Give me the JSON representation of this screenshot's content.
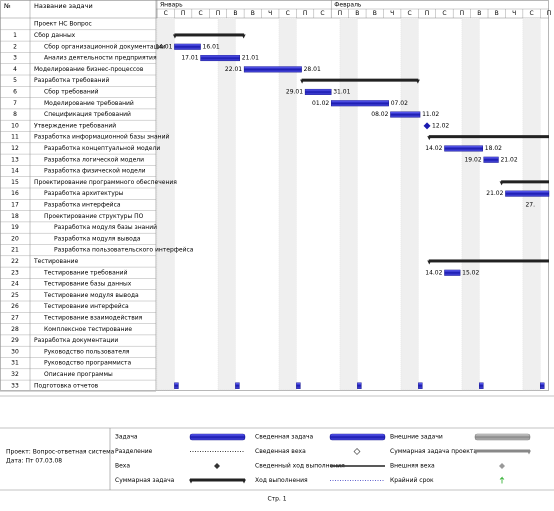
{
  "header": {
    "id_col": "№",
    "name_col": "Название задачи"
  },
  "timescale": {
    "xlim": [
      12,
      57
    ],
    "months": [
      {
        "value": 12,
        "label": "Январь"
      },
      {
        "value": 32,
        "label": "Февраль"
      }
    ],
    "ticks": [
      {
        "value": 12,
        "label": "С"
      },
      {
        "value": 14,
        "label": "П"
      },
      {
        "value": 16,
        "label": "С"
      },
      {
        "value": 18,
        "label": "П"
      },
      {
        "value": 20,
        "label": "В"
      },
      {
        "value": 22,
        "label": "В"
      },
      {
        "value": 24,
        "label": "Ч"
      },
      {
        "value": 26,
        "label": "С"
      },
      {
        "value": 28,
        "label": "П"
      },
      {
        "value": 30,
        "label": "С"
      },
      {
        "value": 32,
        "label": "П"
      },
      {
        "value": 34,
        "label": "В"
      },
      {
        "value": 36,
        "label": "В"
      },
      {
        "value": 38,
        "label": "Ч"
      },
      {
        "value": 40,
        "label": "С"
      },
      {
        "value": 42,
        "label": "П"
      },
      {
        "value": 44,
        "label": "С"
      },
      {
        "value": 46,
        "label": "П"
      },
      {
        "value": 48,
        "label": "В"
      },
      {
        "value": 50,
        "label": "В"
      },
      {
        "value": 52,
        "label": "Ч"
      },
      {
        "value": 54,
        "label": "С"
      },
      {
        "value": 56,
        "label": "П"
      }
    ],
    "weekends": [
      12,
      19,
      26,
      33,
      40,
      47,
      54
    ]
  },
  "tasks": [
    {
      "name": "Проект НС Вопрос",
      "level": 0
    },
    {
      "id": "1",
      "name": "Сбор данных",
      "level": 0,
      "kind": "summary",
      "start": 14,
      "end": 22
    },
    {
      "id": "2",
      "name": "Сбор организационной документации",
      "level": 1,
      "kind": "task",
      "start": 14,
      "end": 17,
      "start_label": "14.01",
      "end_label": "16.01"
    },
    {
      "id": "3",
      "name": "Анализ деятельности предприятия",
      "level": 1,
      "kind": "task",
      "start": 17,
      "end": 21.5,
      "start_label": "17.01",
      "end_label": "21.01"
    },
    {
      "id": "4",
      "name": "Моделирование бизнес-процессов",
      "level": 0,
      "kind": "task",
      "start": 22,
      "end": 28.6,
      "start_label": "22.01",
      "end_label": "28.01"
    },
    {
      "id": "5",
      "name": "Разработка требований",
      "level": 0,
      "kind": "summary",
      "start": 28.6,
      "end": 42
    },
    {
      "id": "6",
      "name": "Сбор требований",
      "level": 1,
      "kind": "task",
      "start": 29,
      "end": 32,
      "start_label": "29.01",
      "end_label": "31.01"
    },
    {
      "id": "7",
      "name": "Моделирование требований",
      "level": 1,
      "kind": "task",
      "start": 32,
      "end": 38.6,
      "start_label": "01.02",
      "end_label": "07.02"
    },
    {
      "id": "8",
      "name": "Спецификация требований",
      "level": 1,
      "kind": "task",
      "start": 38.8,
      "end": 42.2,
      "start_label": "08.02",
      "end_label": "11.02"
    },
    {
      "id": "10",
      "name": "Утверждение требований",
      "level": 0,
      "kind": "milestone",
      "start": 43,
      "end_label": "12.02"
    },
    {
      "id": "11",
      "name": "Разработка информационной базы знаний",
      "level": 0,
      "kind": "summary",
      "start": 43.2,
      "end": 57
    },
    {
      "id": "12",
      "name": "Разработка концептуальной модели",
      "level": 1,
      "kind": "task",
      "start": 45,
      "end": 49.4,
      "start_label": "14.02",
      "end_label": "18.02"
    },
    {
      "id": "13",
      "name": "Разработка логической модели",
      "level": 1,
      "kind": "task",
      "start": 49.5,
      "end": 51.2,
      "start_label": "19.02",
      "end_label": "21.02"
    },
    {
      "id": "14",
      "name": "Разработка физической модели",
      "level": 1
    },
    {
      "id": "15",
      "name": "Проектирование программного обеспечения",
      "level": 0,
      "kind": "summary",
      "start": 51.5,
      "end": 57
    },
    {
      "id": "16",
      "name": "Разработка архитектуры",
      "level": 1,
      "kind": "task",
      "start": 52,
      "end": 57,
      "start_label": "21.02"
    },
    {
      "id": "17",
      "name": "Разработка интерфейса",
      "level": 1,
      "start_label": "27."
    },
    {
      "id": "18",
      "name": "Проектирование структуры ПО",
      "level": 1
    },
    {
      "id": "19",
      "name": "Разработка модуля базы знаний",
      "level": 2
    },
    {
      "id": "20",
      "name": "Разработка модуля вывода",
      "level": 2
    },
    {
      "id": "21",
      "name": "Разработка пользовательского интерфейса",
      "level": 2
    },
    {
      "id": "22",
      "name": "Тестирование",
      "level": 0,
      "kind": "summary",
      "start": 43.2,
      "end": 57
    },
    {
      "id": "23",
      "name": "Тестирование требований",
      "level": 1,
      "kind": "task",
      "start": 45,
      "end": 46.8,
      "start_label": "14.02",
      "end_label": "15.02"
    },
    {
      "id": "24",
      "name": "Тестирование базы данных",
      "level": 1
    },
    {
      "id": "25",
      "name": "Тестирование модуля вывода",
      "level": 1
    },
    {
      "id": "26",
      "name": "Тестирование интерфейса",
      "level": 1
    },
    {
      "id": "27",
      "name": "Тестирование взаимодействия",
      "level": 1
    },
    {
      "id": "28",
      "name": "Комплексное тестирование",
      "level": 1
    },
    {
      "id": "29",
      "name": "Разработка документации",
      "level": 0
    },
    {
      "id": "30",
      "name": "Руководство пользователя",
      "level": 1
    },
    {
      "id": "31",
      "name": "Руководство программиста",
      "level": 1
    },
    {
      "id": "32",
      "name": "Описание программы",
      "level": 1
    },
    {
      "id": "33",
      "name": "Подготовка отчетов",
      "level": 0,
      "kind": "recurring",
      "occurrences": [
        14,
        21,
        28,
        35,
        42,
        49,
        56
      ]
    }
  ],
  "legend": {
    "project": "Проект: Вопрос-ответная система",
    "date": "Дата: Пт 07.03.08",
    "items": [
      {
        "label": "Задача",
        "symbol": "task"
      },
      {
        "label": "Разделение",
        "symbol": "split"
      },
      {
        "label": "Веха",
        "symbol": "milestone"
      },
      {
        "label": "Суммарная задача",
        "symbol": "summary"
      },
      {
        "label": "Сведенная задача",
        "symbol": "task"
      },
      {
        "label": "Сведенная веха",
        "symbol": "hollow"
      },
      {
        "label": "Сведенный ход выполнения",
        "symbol": "line"
      },
      {
        "label": "Ход выполнения",
        "symbol": "dotted"
      },
      {
        "label": "Внешние задачи",
        "symbol": "external"
      },
      {
        "label": "Суммарная задача проекта",
        "symbol": "project"
      },
      {
        "label": "Внешняя веха",
        "symbol": "extmilestone"
      },
      {
        "label": "Крайний срок",
        "symbol": "deadline"
      }
    ]
  },
  "footer": "Стр. 1"
}
